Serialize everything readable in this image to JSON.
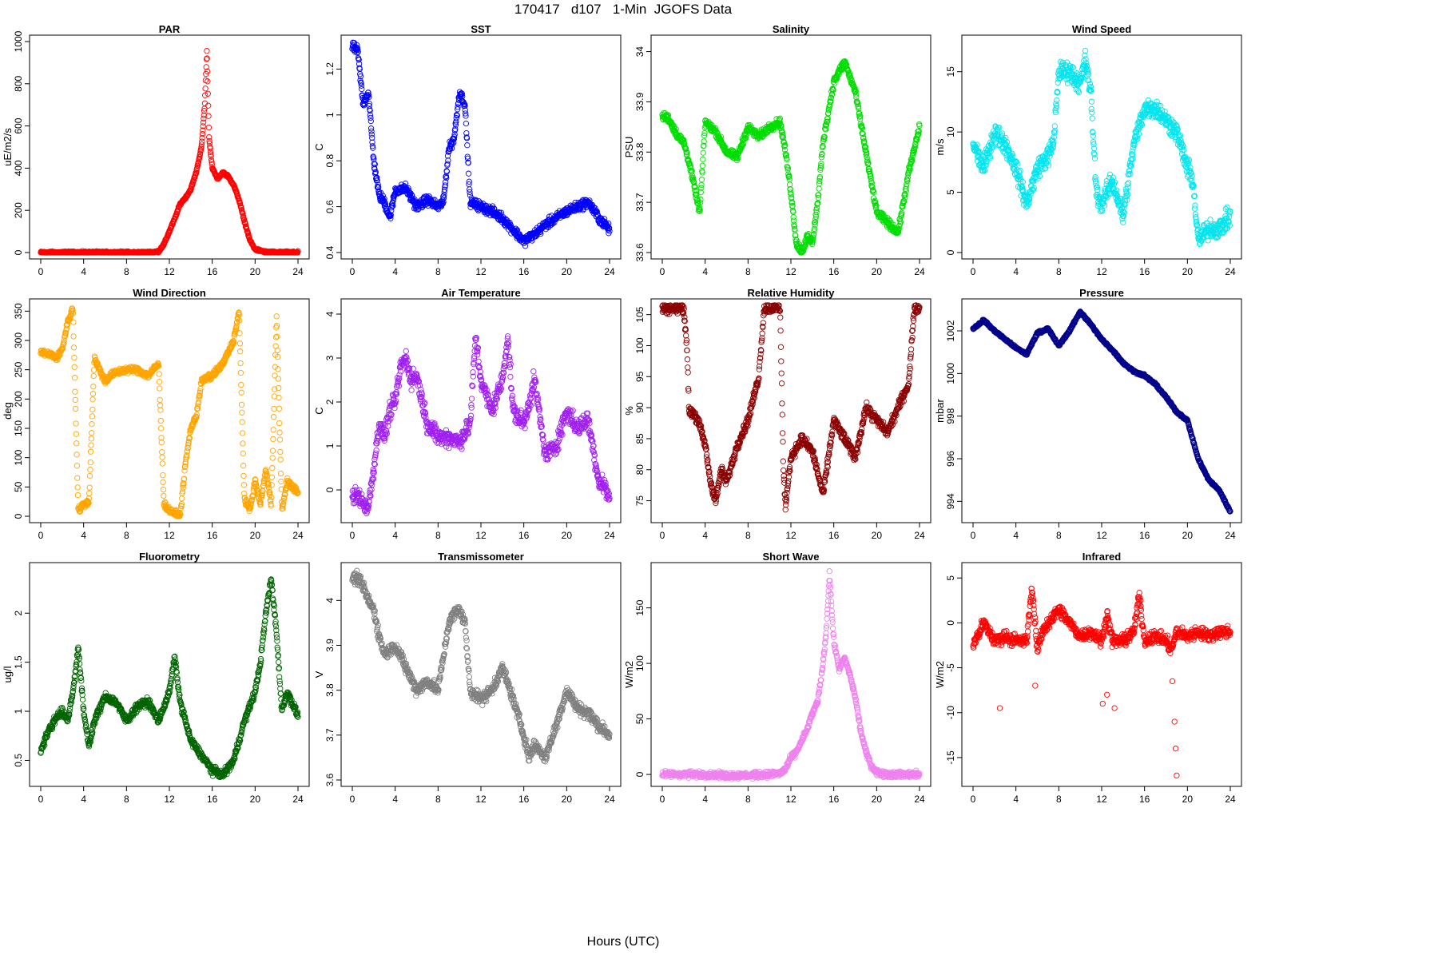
{
  "figure": {
    "title": "170417   d107   1-Min  JGOFS Data",
    "xlabel": "Hours (UTC)"
  },
  "chart_data": [
    {
      "type": "scatter",
      "title": "PAR",
      "ylabel": "uE/m2/s",
      "color": "#ff0000",
      "xlim": [
        0,
        24
      ],
      "ylim": [
        0,
        1000
      ],
      "xticks": [
        0,
        4,
        8,
        12,
        16,
        20,
        24
      ],
      "yticks": [
        0,
        200,
        400,
        600,
        800,
        1000
      ],
      "x": [
        0,
        2,
        4,
        6,
        8,
        10,
        11,
        11.5,
        12,
        12.5,
        13,
        13.5,
        14,
        14.5,
        15,
        15.3,
        15.5,
        15.7,
        16,
        16.5,
        17,
        17.5,
        18,
        18.5,
        19,
        19.5,
        20,
        21,
        22,
        23,
        24
      ],
      "y": [
        0,
        0,
        0,
        0,
        0,
        0,
        5,
        40,
        100,
        160,
        230,
        260,
        300,
        380,
        500,
        700,
        960,
        550,
        400,
        350,
        380,
        360,
        320,
        250,
        150,
        60,
        15,
        2,
        0,
        0,
        0
      ],
      "noise": 8
    },
    {
      "type": "scatter",
      "title": "SST",
      "ylabel": "C",
      "color": "#0000ff",
      "xlim": [
        0,
        24
      ],
      "ylim": [
        0.4,
        1.32
      ],
      "xticks": [
        0,
        4,
        8,
        12,
        16,
        20,
        24
      ],
      "yticks": [
        0.4,
        0.6,
        0.8,
        1.0,
        1.2
      ],
      "x": [
        0,
        0.5,
        1,
        1.5,
        2,
        2.5,
        3,
        3.5,
        4,
        5,
        6,
        7,
        8,
        8.5,
        9,
        9.5,
        10,
        10.5,
        11,
        12,
        13,
        14,
        15,
        16,
        17,
        18,
        19,
        20,
        21,
        22,
        23,
        24
      ],
      "y": [
        1.3,
        1.28,
        1.05,
        1.1,
        0.8,
        0.65,
        0.62,
        0.55,
        0.67,
        0.68,
        0.6,
        0.63,
        0.6,
        0.62,
        0.85,
        0.9,
        1.1,
        1.05,
        0.62,
        0.6,
        0.58,
        0.55,
        0.5,
        0.45,
        0.48,
        0.52,
        0.55,
        0.58,
        0.6,
        0.62,
        0.55,
        0.5
      ],
      "noise": 0.03
    },
    {
      "type": "scatter",
      "title": "Salinity",
      "ylabel": "PSU",
      "color": "#00dd00",
      "xlim": [
        0,
        24
      ],
      "ylim": [
        33.6,
        34.02
      ],
      "xticks": [
        0,
        4,
        8,
        12,
        16,
        20,
        24
      ],
      "yticks": [
        33.6,
        33.7,
        33.8,
        33.9,
        34.0
      ],
      "x": [
        0,
        0.5,
        1,
        1.5,
        2,
        2.5,
        3,
        3.5,
        4,
        5,
        6,
        7,
        8,
        9,
        10,
        11,
        11.5,
        12,
        12.5,
        13,
        13.5,
        14,
        14.5,
        15,
        16,
        17,
        18,
        19,
        20,
        21,
        22,
        23,
        24
      ],
      "y": [
        33.87,
        33.87,
        33.85,
        33.83,
        33.82,
        33.78,
        33.73,
        33.68,
        33.86,
        33.84,
        33.8,
        33.79,
        33.85,
        33.83,
        33.85,
        33.86,
        33.8,
        33.72,
        33.62,
        33.6,
        33.63,
        33.62,
        33.7,
        33.82,
        33.94,
        33.98,
        33.92,
        33.8,
        33.68,
        33.66,
        33.64,
        33.76,
        33.85
      ],
      "noise": 0.012
    },
    {
      "type": "scatter",
      "title": "Wind Speed",
      "ylabel": "m/s",
      "color": "#00e5ee",
      "xlim": [
        0,
        24
      ],
      "ylim": [
        0,
        17.5
      ],
      "xticks": [
        0,
        4,
        8,
        12,
        16,
        20,
        24
      ],
      "yticks": [
        0,
        5,
        10,
        15
      ],
      "x": [
        0,
        1,
        2,
        3,
        4,
        5,
        6,
        7,
        7.5,
        8,
        9,
        10,
        10.5,
        11,
        11.5,
        12,
        13,
        14,
        15,
        16,
        17,
        18,
        19,
        20,
        20.5,
        21,
        22,
        23,
        24
      ],
      "y": [
        9,
        7,
        10,
        9,
        7,
        4,
        7,
        8,
        9,
        15,
        15,
        14,
        16,
        13,
        5,
        4,
        6,
        3,
        9,
        12,
        12,
        11,
        10,
        7,
        6,
        1,
        2,
        2,
        3
      ],
      "noise": 1.2
    },
    {
      "type": "scatter",
      "title": "Wind Direction",
      "ylabel": "deg",
      "color": "#ffa500",
      "xlim": [
        0,
        24
      ],
      "ylim": [
        0,
        360
      ],
      "xticks": [
        0,
        4,
        8,
        12,
        16,
        20,
        24
      ],
      "yticks": [
        0,
        50,
        100,
        150,
        200,
        250,
        300,
        350
      ],
      "x": [
        0,
        1,
        1.5,
        2,
        2.5,
        3,
        3.5,
        4,
        4.5,
        5,
        5.5,
        6,
        6.5,
        7,
        8,
        9,
        10,
        11,
        11.5,
        12,
        12.5,
        13,
        13.5,
        14,
        14.5,
        15,
        16,
        17,
        18,
        18.5,
        19,
        19.5,
        20,
        20.5,
        21,
        21.5,
        22,
        22.5,
        23,
        23.5,
        24
      ],
      "y": [
        280,
        275,
        270,
        285,
        330,
        355,
        10,
        20,
        25,
        270,
        250,
        230,
        240,
        245,
        250,
        250,
        240,
        260,
        20,
        10,
        5,
        0,
        90,
        150,
        170,
        230,
        240,
        260,
        300,
        350,
        30,
        10,
        60,
        20,
        80,
        20,
        340,
        10,
        60,
        50,
        40
      ],
      "noise": 8
    },
    {
      "type": "scatter",
      "title": "Air Temperature",
      "ylabel": "C",
      "color": "#a020f0",
      "xlim": [
        0,
        24
      ],
      "ylim": [
        -0.6,
        4.2
      ],
      "xticks": [
        0,
        4,
        8,
        12,
        16,
        20,
        24
      ],
      "yticks": [
        0,
        1,
        2,
        3,
        4
      ],
      "x": [
        0,
        0.5,
        1,
        1.5,
        2,
        2.5,
        3,
        3.5,
        4,
        4.5,
        5,
        5.5,
        6,
        7,
        8,
        9,
        10,
        11,
        11.5,
        12,
        13,
        14,
        14.5,
        15,
        16,
        17,
        18,
        19,
        20,
        21,
        22,
        23,
        23.5,
        24
      ],
      "y": [
        -0.2,
        -0.1,
        -0.3,
        -0.4,
        0.5,
        1.5,
        1.2,
        1.8,
        2.0,
        2.8,
        3.0,
        2.5,
        2.6,
        1.5,
        1.2,
        1.2,
        1.1,
        1.5,
        3.5,
        2.5,
        1.8,
        2.5,
        3.5,
        1.8,
        1.5,
        2.5,
        0.8,
        1.0,
        1.8,
        1.4,
        1.6,
        0.2,
        0.1,
        -0.2
      ],
      "noise": 0.3
    },
    {
      "type": "scatter",
      "title": "Relative Humidity",
      "ylabel": "%",
      "color": "#8b0000",
      "xlim": [
        0,
        24
      ],
      "ylim": [
        72.5,
        106.5
      ],
      "xticks": [
        0,
        4,
        8,
        12,
        16,
        20,
        24
      ],
      "yticks": [
        75,
        80,
        85,
        90,
        95,
        100,
        105
      ],
      "x": [
        0,
        1,
        2,
        2.3,
        2.5,
        3,
        3.5,
        4,
        4.5,
        5,
        5.5,
        6,
        7,
        8,
        9,
        9.5,
        10,
        11,
        11.3,
        11.5,
        12,
        13,
        14,
        15,
        16,
        17,
        18,
        19,
        20,
        21,
        22,
        23,
        23.5,
        24
      ],
      "y": [
        106,
        106,
        106,
        100,
        89.5,
        89,
        87,
        84,
        78,
        75,
        80,
        78,
        84,
        88,
        95,
        106,
        106,
        106,
        80,
        74,
        82,
        85,
        83,
        76,
        88,
        85,
        82,
        90,
        88,
        86,
        90,
        94,
        106,
        106
      ],
      "noise": 1.2
    },
    {
      "type": "scatter",
      "title": "Pressure",
      "ylabel": "mbar",
      "color": "#00008b",
      "xlim": [
        0,
        24
      ],
      "ylim": [
        993.3,
        1003.2
      ],
      "xticks": [
        0,
        4,
        8,
        12,
        16,
        20,
        24
      ],
      "yticks": [
        994,
        996,
        998,
        1000,
        1002
      ],
      "x": [
        0,
        1,
        2,
        3,
        4,
        5,
        6,
        7,
        8,
        9,
        10,
        11,
        12,
        13,
        14,
        15,
        16,
        17,
        18,
        19,
        20,
        21,
        22,
        23,
        24
      ],
      "y": [
        1002.1,
        1002.5,
        1002.0,
        1001.6,
        1001.2,
        1000.9,
        1001.9,
        1002.1,
        1001.3,
        1002.0,
        1002.9,
        1002.3,
        1001.6,
        1001.1,
        1000.5,
        1000.1,
        999.9,
        999.5,
        998.9,
        998.2,
        997.8,
        996.0,
        995.0,
        994.5,
        993.5
      ],
      "noise": 0.08
    },
    {
      "type": "scatter",
      "title": "Fluorometry",
      "ylabel": "ug/l",
      "color": "#006400",
      "xlim": [
        0,
        24
      ],
      "ylim": [
        0.3,
        2.45
      ],
      "xticks": [
        0,
        4,
        8,
        12,
        16,
        20,
        24
      ],
      "yticks": [
        0.5,
        1.0,
        1.5,
        2.0
      ],
      "x": [
        0,
        0.5,
        1,
        1.5,
        2,
        2.5,
        3,
        3.5,
        4,
        4.5,
        5,
        6,
        7,
        8,
        9,
        10,
        11,
        12,
        12.5,
        13,
        14,
        15,
        16,
        17,
        18,
        19,
        20,
        20.5,
        21,
        21.5,
        22,
        22.5,
        23,
        24
      ],
      "y": [
        0.6,
        0.75,
        0.85,
        0.95,
        1.0,
        0.9,
        1.2,
        1.65,
        1.0,
        0.65,
        0.9,
        1.15,
        1.1,
        0.9,
        1.05,
        1.1,
        0.9,
        1.2,
        1.55,
        1.1,
        0.7,
        0.55,
        0.4,
        0.35,
        0.5,
        0.9,
        1.2,
        1.5,
        2.0,
        2.35,
        1.8,
        1.0,
        1.2,
        0.95
      ],
      "noise": 0.06
    },
    {
      "type": "scatter",
      "title": "Transmissometer",
      "ylabel": "V",
      "color": "#808080",
      "xlim": [
        0,
        24
      ],
      "ylim": [
        3.6,
        4.07
      ],
      "xticks": [
        0,
        4,
        8,
        12,
        16,
        20,
        24
      ],
      "yticks": [
        3.6,
        3.7,
        3.8,
        3.9,
        4.0
      ],
      "x": [
        0,
        0.5,
        1,
        1.5,
        2,
        2.5,
        3,
        4,
        5,
        6,
        7,
        8,
        9,
        9.5,
        10,
        10.5,
        11,
        12,
        13,
        14,
        15,
        16,
        16.5,
        17,
        18,
        19,
        20,
        21,
        22,
        23,
        24
      ],
      "y": [
        4.05,
        4.05,
        4.03,
        4.0,
        3.98,
        3.92,
        3.88,
        3.9,
        3.85,
        3.8,
        3.82,
        3.8,
        3.95,
        3.97,
        3.98,
        3.95,
        3.8,
        3.78,
        3.8,
        3.85,
        3.78,
        3.7,
        3.65,
        3.68,
        3.65,
        3.72,
        3.8,
        3.76,
        3.75,
        3.72,
        3.7
      ],
      "noise": 0.02
    },
    {
      "type": "scatter",
      "title": "Short Wave",
      "ylabel": "W/m2",
      "color": "#ee82ee",
      "xlim": [
        0,
        24
      ],
      "ylim": [
        -5,
        185
      ],
      "xticks": [
        0,
        4,
        8,
        12,
        16,
        20,
        24
      ],
      "yticks": [
        0,
        50,
        100,
        150
      ],
      "x": [
        0,
        2,
        4,
        6,
        8,
        10,
        11,
        11.5,
        12,
        12.5,
        13,
        13.5,
        14,
        14.5,
        15,
        15.3,
        15.6,
        16,
        16.5,
        17,
        17.5,
        18,
        18.5,
        19,
        19.5,
        20,
        21,
        22,
        23,
        24
      ],
      "y": [
        0,
        0,
        0,
        -1,
        -1,
        0,
        1,
        5,
        15,
        20,
        30,
        40,
        55,
        65,
        100,
        130,
        180,
        120,
        95,
        105,
        90,
        70,
        40,
        20,
        8,
        2,
        0,
        0,
        0,
        0
      ],
      "noise": 4
    },
    {
      "type": "scatter",
      "title": "Infrared",
      "ylabel": "W/m2",
      "color": "#ff0000",
      "xlim": [
        0,
        24
      ],
      "ylim": [
        -17.5,
        6
      ],
      "xticks": [
        0,
        4,
        8,
        12,
        16,
        20,
        24
      ],
      "yticks": [
        -15,
        -10,
        -5,
        0,
        5
      ],
      "x": [
        0,
        1,
        2,
        3,
        4,
        5,
        5.5,
        6,
        6.5,
        7,
        8,
        9,
        10,
        11,
        12,
        12.5,
        13,
        14,
        15,
        15.5,
        16,
        17,
        18,
        18.5,
        19,
        20,
        21,
        22,
        23,
        24
      ],
      "y": [
        -2.5,
        0,
        -2,
        -1.5,
        -2,
        -2,
        4,
        -3,
        -1,
        0,
        1.5,
        0,
        -1.5,
        -1,
        -2,
        1,
        -2,
        -2,
        -1,
        3,
        -2,
        -1.5,
        -2,
        -3,
        -1,
        -1.5,
        -1,
        -1.5,
        -1,
        -1
      ],
      "noise": 1.0,
      "outliers": {
        "x": [
          2.5,
          5.8,
          12.1,
          12.5,
          13.2,
          18.6,
          18.8,
          18.9,
          19.0
        ],
        "y": [
          -9.5,
          -7,
          -9,
          -8,
          -9.5,
          -6.5,
          -11,
          -14,
          -17
        ]
      }
    }
  ]
}
